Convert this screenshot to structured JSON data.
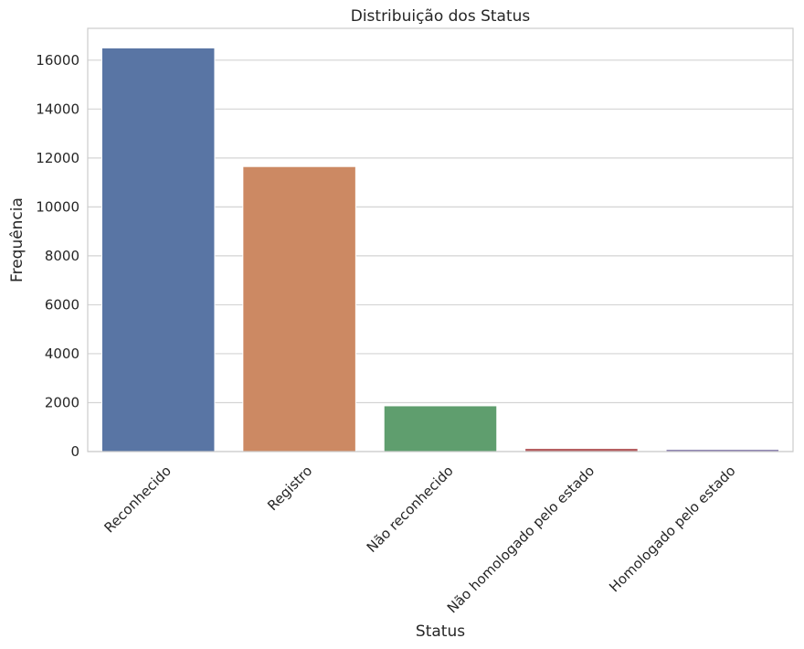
{
  "chart_data": {
    "type": "bar",
    "title": "Distribuição dos Status",
    "xlabel": "Status",
    "ylabel": "Frequência",
    "categories": [
      "Reconhecido",
      "Registro",
      "Não reconhecido",
      "Não homologado pelo estado",
      "Homologado pelo estado"
    ],
    "values": [
      16500,
      11650,
      1870,
      130,
      90
    ],
    "colors": [
      "#5975a4",
      "#cc8963",
      "#5f9e6e",
      "#b55d60",
      "#857aab"
    ],
    "ylim": [
      0,
      17300
    ],
    "yticks": [
      0,
      2000,
      4000,
      6000,
      8000,
      10000,
      12000,
      14000,
      16000
    ],
    "grid": true,
    "legend": "none"
  }
}
